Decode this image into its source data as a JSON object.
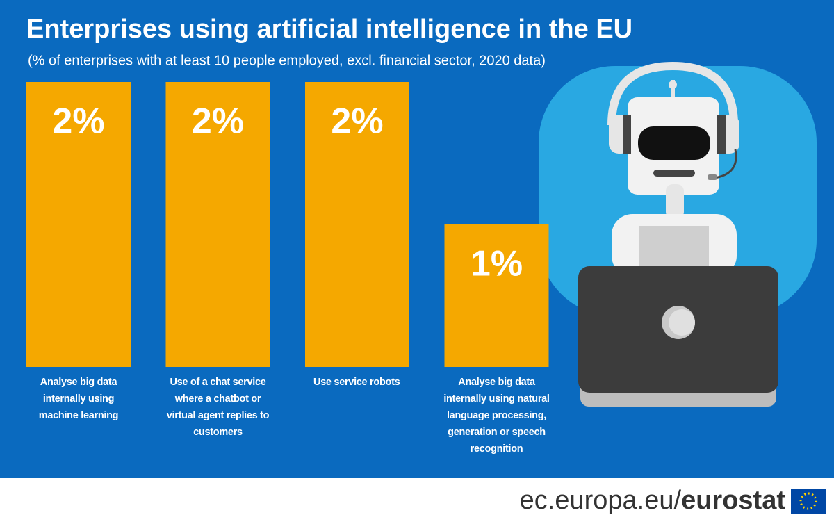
{
  "chart_data": {
    "type": "bar",
    "title": "Enterprises using artificial intelligence in the EU",
    "subtitle": "(% of enterprises with at least 10 people employed, excl. financial sector, 2020 data)",
    "categories": [
      "Analyse big data internally using machine learning",
      "Use of a chat service where a chatbot or virtual agent replies to customers",
      "Use service robots",
      "Analyse big data internally using natural language processing, generation or speech recognition"
    ],
    "values": [
      2,
      2,
      2,
      1
    ],
    "value_labels": [
      "2%",
      "2%",
      "2%",
      "1%"
    ],
    "color": "#f5a800"
  },
  "footer": {
    "domain": "ec.europa.eu/",
    "brand": "eurostat"
  }
}
